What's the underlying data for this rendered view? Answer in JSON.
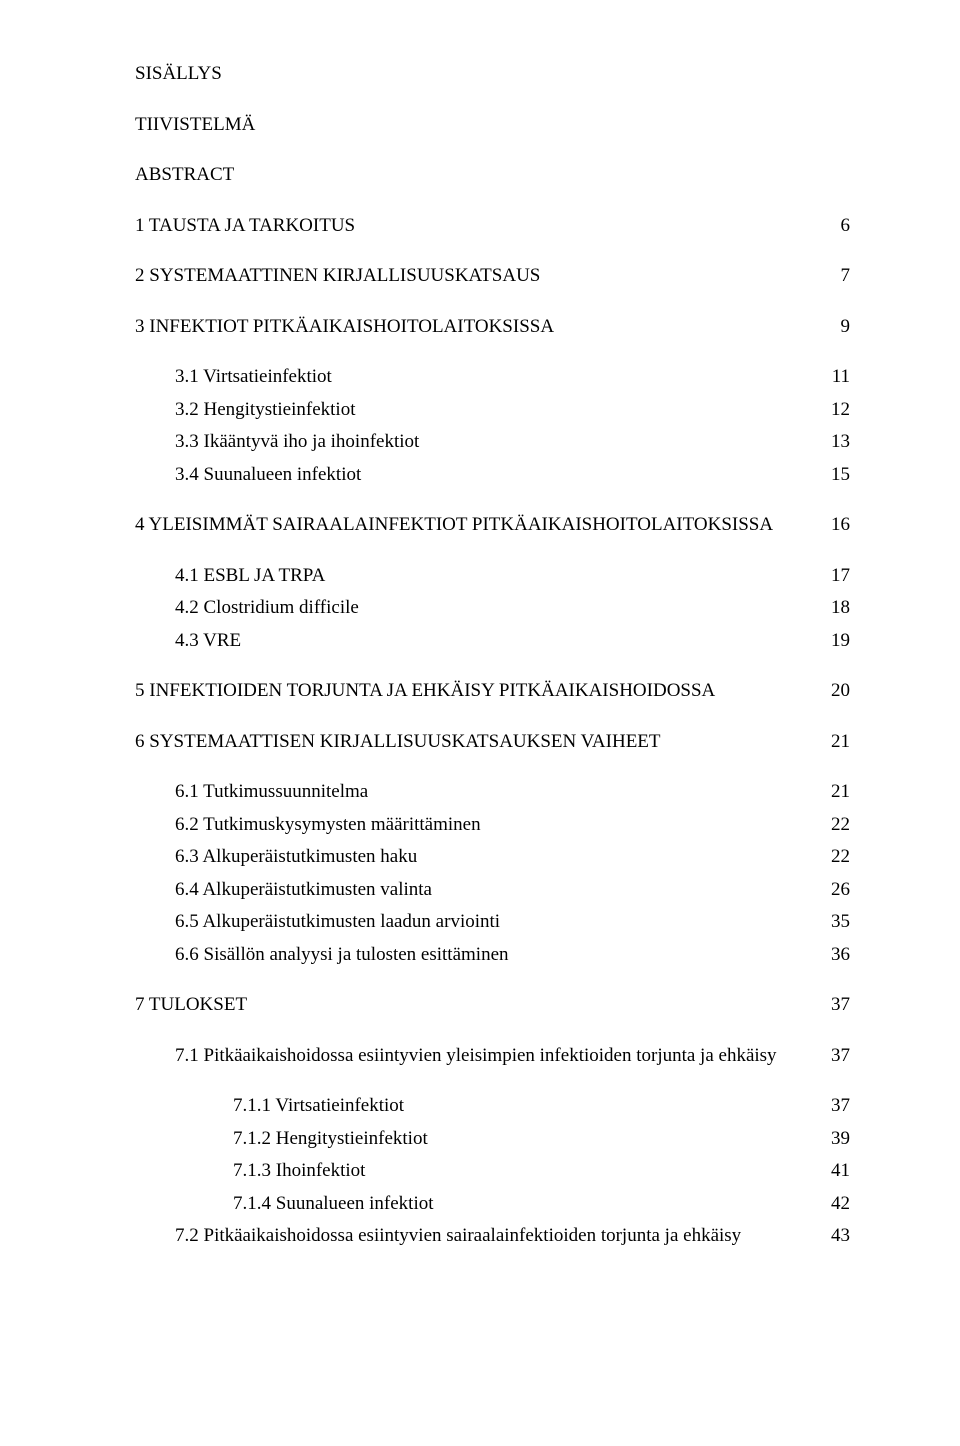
{
  "headings": {
    "sisallys": "SISÄLLYS",
    "tiivistelma": "TIIVISTELMÄ",
    "abstract": "ABSTRACT"
  },
  "toc": [
    {
      "label": "1  TAUSTA JA TARKOITUS",
      "page": "6",
      "indent": 0
    },
    {
      "label": "2  SYSTEMAATTINEN KIRJALLISUUSKATSAUS",
      "page": "7",
      "indent": 0
    },
    {
      "label": "3  INFEKTIOT PITKÄAIKAISHOITOLAITOKSISSA",
      "page": "9",
      "indent": 0
    },
    {
      "label": "3.1  Virtsatieinfektiot",
      "page": "11",
      "indent": 1,
      "tight": true
    },
    {
      "label": "3.2  Hengitystieinfektiot",
      "page": "12",
      "indent": 1,
      "tight": true
    },
    {
      "label": "3.3  Ikääntyvä iho ja ihoinfektiot",
      "page": "13",
      "indent": 1,
      "tight": true
    },
    {
      "label": "3.4  Suunalueen infektiot",
      "page": "15",
      "indent": 1
    },
    {
      "label": "4  YLEISIMMÄT SAIRAALAINFEKTIOT PITKÄAIKAISHOITOLAITOKSISSA",
      "page": "16",
      "indent": 0
    },
    {
      "label": "4.1  ESBL JA TRPA",
      "page": "17",
      "indent": 1,
      "tight": true
    },
    {
      "label": "4.2  Clostridium difficile",
      "page": "18",
      "indent": 1,
      "tight": true
    },
    {
      "label": "4.3  VRE",
      "page": "19",
      "indent": 1
    },
    {
      "label": "5  INFEKTIOIDEN TORJUNTA JA EHKÄISY PITKÄAIKAISHOIDOSSA",
      "page": "20",
      "indent": 0
    },
    {
      "label": "6  SYSTEMAATTISEN KIRJALLISUUSKATSAUKSEN VAIHEET",
      "page": "21",
      "indent": 0
    },
    {
      "label": "6.1  Tutkimussuunnitelma",
      "page": "21",
      "indent": 1,
      "tight": true
    },
    {
      "label": "6.2  Tutkimuskysymysten määrittäminen",
      "page": "22",
      "indent": 1,
      "tight": true
    },
    {
      "label": "6.3  Alkuperäistutkimusten haku",
      "page": "22",
      "indent": 1,
      "tight": true
    },
    {
      "label": "6.4  Alkuperäistutkimusten valinta",
      "page": "26",
      "indent": 1,
      "tight": true
    },
    {
      "label": "6.5  Alkuperäistutkimusten laadun arviointi",
      "page": "35",
      "indent": 1,
      "tight": true
    },
    {
      "label": "6.6  Sisällön analyysi ja tulosten esittäminen",
      "page": "36",
      "indent": 1
    },
    {
      "label": "7  TULOKSET",
      "page": "37",
      "indent": 0
    },
    {
      "label": "7.1  Pitkäaikaishoidossa esiintyvien yleisimpien infektioiden torjunta ja ehkäisy",
      "page": "37",
      "indent": 1
    },
    {
      "label": "7.1.1  Virtsatieinfektiot",
      "page": "37",
      "indent": 2,
      "tight": true
    },
    {
      "label": "7.1.2  Hengitystieinfektiot",
      "page": "39",
      "indent": 2,
      "tight": true
    },
    {
      "label": "7.1.3  Ihoinfektiot",
      "page": "41",
      "indent": 2,
      "tight": true
    },
    {
      "label": "7.1.4  Suunalueen infektiot",
      "page": "42",
      "indent": 2,
      "tight": true
    },
    {
      "label": "7.2  Pitkäaikaishoidossa esiintyvien sairaalainfektioiden torjunta ja ehkäisy",
      "page": "43",
      "indent": 1,
      "tight": true
    }
  ]
}
